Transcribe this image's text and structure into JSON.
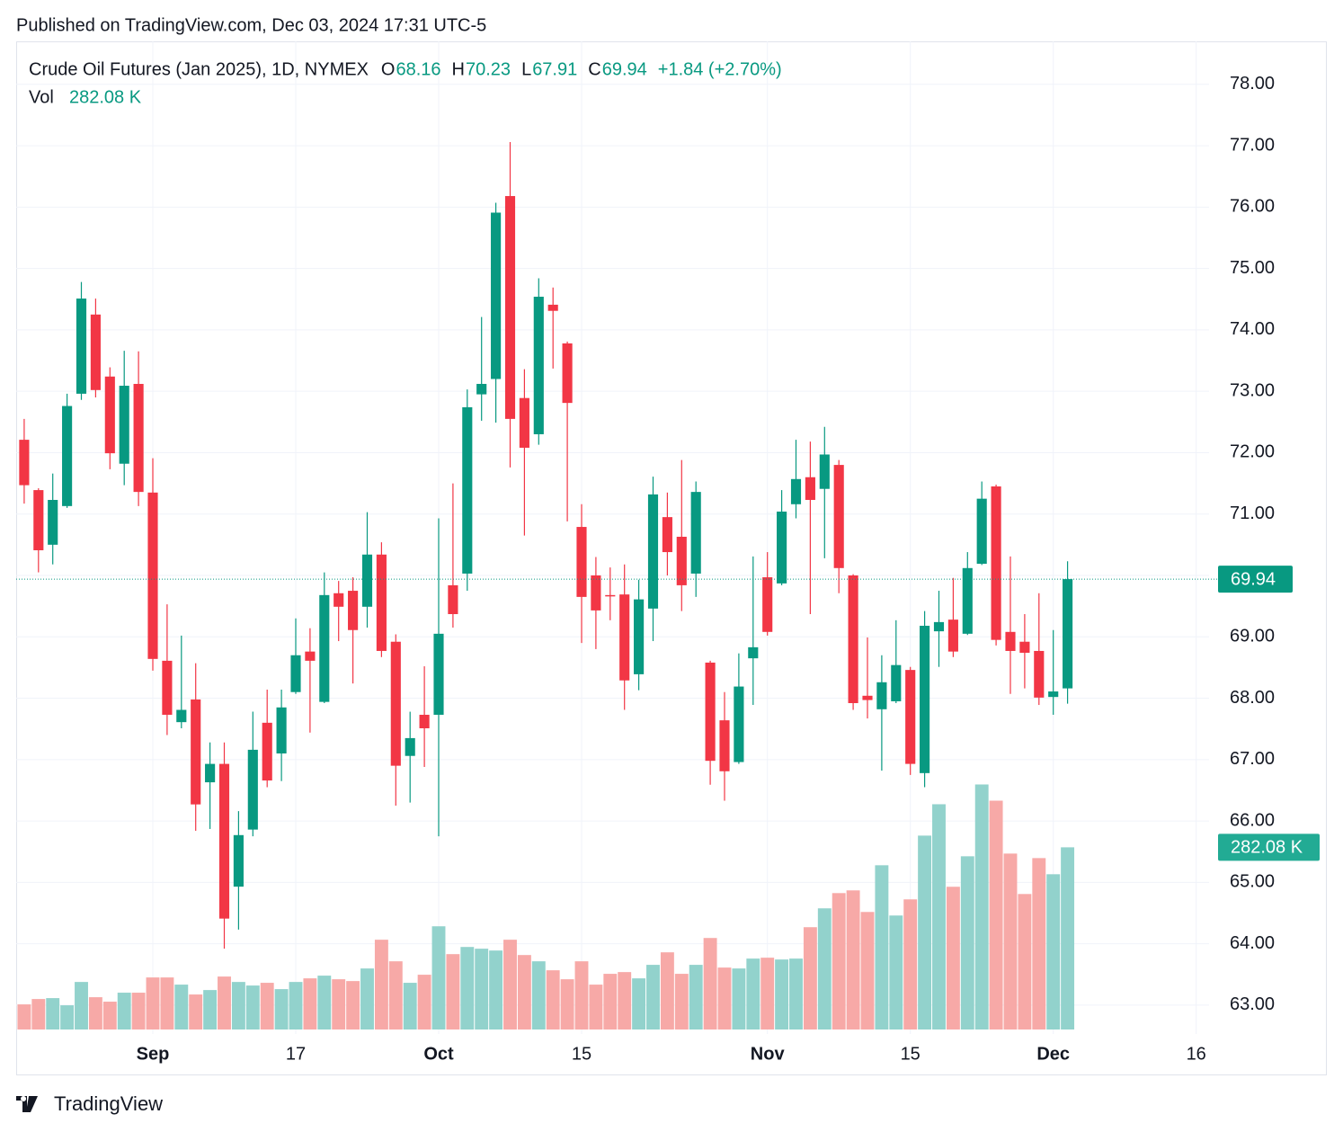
{
  "published": "Published on TradingView.com, Dec 03, 2024 17:31 UTC-5",
  "brand": "TradingView",
  "chart_data": {
    "type": "candlestick",
    "title": "Crude Oil Futures (Jan 2025), 1D, NYMEX",
    "ohlc_keys": [
      "O",
      "H",
      "L",
      "C"
    ],
    "change": "+1.84 (+2.70%)",
    "volume_title": "Vol",
    "volume_label": "282.08 K",
    "up_color": "#089981",
    "down_color": "#f23645",
    "up_volume_color": "#92d2cc",
    "down_volume_color": "#f7a9a7",
    "open": [
      72.21,
      71.39,
      70.5,
      71.13,
      72.96,
      74.25,
      73.24,
      71.82,
      73.12,
      71.35,
      68.61,
      67.61,
      67.98,
      66.63,
      66.93,
      64.93,
      65.86,
      67.6,
      67.1,
      68.1,
      68.76,
      67.94,
      69.71,
      69.75,
      69.49,
      70.34,
      68.92,
      67.06,
      67.73,
      67.73,
      69.84,
      70.03,
      72.95,
      73.2,
      76.18,
      72.89,
      72.3,
      74.41,
      73.78,
      70.79,
      70.0,
      69.68,
      69.69,
      68.39,
      69.46,
      70.95,
      70.63,
      70.03,
      68.58,
      67.64,
      66.96,
      68.65,
      69.97,
      69.87,
      71.16,
      71.6,
      71.41,
      71.8,
      70.0,
      68.04,
      67.82,
      67.95,
      68.46,
      66.78,
      69.09,
      69.28,
      69.05,
      70.19,
      71.45,
      69.08,
      68.92,
      68.77,
      68.02,
      68.16
    ],
    "high": [
      72.55,
      71.42,
      71.66,
      72.96,
      74.78,
      74.51,
      73.39,
      73.66,
      73.65,
      71.91,
      69.53,
      69.02,
      68.57,
      67.28,
      67.28,
      66.16,
      67.78,
      68.14,
      68.14,
      69.3,
      69.14,
      70.05,
      69.91,
      69.97,
      71.03,
      70.54,
      69.04,
      67.78,
      68.52,
      70.93,
      71.5,
      73.03,
      74.21,
      76.07,
      77.06,
      73.36,
      74.84,
      74.69,
      73.81,
      71.16,
      70.3,
      70.13,
      70.18,
      69.93,
      71.61,
      71.35,
      71.88,
      71.53,
      68.61,
      68.1,
      68.73,
      70.31,
      70.38,
      71.39,
      72.21,
      72.18,
      72.42,
      71.88,
      70.02,
      68.99,
      68.7,
      69.27,
      68.51,
      69.42,
      69.75,
      69.96,
      70.38,
      71.53,
      71.48,
      70.31,
      69.37,
      69.71,
      69.11,
      70.23
    ],
    "low": [
      71.17,
      70.05,
      70.18,
      71.1,
      72.86,
      72.9,
      71.73,
      71.47,
      71.13,
      68.45,
      67.4,
      67.51,
      65.84,
      65.87,
      63.92,
      64.23,
      65.75,
      66.55,
      66.65,
      68.07,
      67.44,
      67.92,
      68.93,
      68.24,
      69.15,
      68.67,
      66.25,
      66.3,
      66.88,
      65.75,
      69.15,
      69.75,
      72.52,
      72.49,
      71.76,
      70.65,
      72.13,
      73.37,
      70.88,
      68.9,
      68.8,
      69.27,
      67.81,
      68.13,
      68.93,
      70.0,
      69.42,
      69.65,
      66.59,
      66.33,
      66.93,
      67.89,
      69.02,
      69.84,
      70.93,
      69.37,
      70.28,
      69.71,
      67.81,
      67.67,
      66.82,
      67.92,
      66.75,
      66.55,
      68.51,
      68.67,
      69.03,
      70.17,
      68.86,
      68.07,
      68.16,
      67.89,
      67.73,
      67.91
    ],
    "close": [
      71.47,
      70.41,
      71.23,
      72.76,
      74.51,
      73.02,
      71.99,
      73.09,
      71.36,
      68.64,
      67.73,
      67.81,
      66.27,
      66.93,
      64.41,
      65.77,
      67.16,
      66.66,
      67.85,
      68.7,
      68.61,
      69.68,
      69.49,
      69.11,
      70.34,
      68.77,
      66.9,
      67.35,
      67.51,
      69.05,
      69.37,
      72.74,
      73.12,
      75.91,
      72.55,
      72.08,
      74.54,
      74.31,
      72.81,
      69.65,
      69.43,
      69.67,
      68.29,
      69.61,
      71.32,
      70.38,
      69.84,
      71.36,
      66.98,
      66.81,
      68.19,
      68.83,
      69.08,
      71.04,
      71.57,
      71.23,
      71.97,
      70.12,
      67.92,
      67.97,
      68.26,
      68.54,
      66.93,
      69.18,
      69.24,
      68.76,
      70.12,
      71.25,
      68.95,
      68.77,
      68.74,
      68.01,
      68.11,
      69.94
    ],
    "volume": [
      38.9,
      47.2,
      48.6,
      37.5,
      73.6,
      50.0,
      43.1,
      57.0,
      57.0,
      80.6,
      80.6,
      69.5,
      54.2,
      61.1,
      82.0,
      73.6,
      68.1,
      72.3,
      62.5,
      73.6,
      79.2,
      83.4,
      77.8,
      75.0,
      94.5,
      139.0,
      105.6,
      72.3,
      84.8,
      159.8,
      116.7,
      127.8,
      125.1,
      122.3,
      139.0,
      115.3,
      105.6,
      91.7,
      77.8,
      105.6,
      69.5,
      86.2,
      88.9,
      79.2,
      100.1,
      119.5,
      86.2,
      100.1,
      141.7,
      95.9,
      94.5,
      109.8,
      111.2,
      108.4,
      109.8,
      158.4,
      187.6,
      211.2,
      215.4,
      182.0,
      254.3,
      176.5,
      201.5,
      300.2,
      348.8,
      221.0,
      268.2,
      379.4,
      354.3,
      272.4,
      209.8,
      265.4,
      240.4,
      282.08
    ],
    "xlim": [
      -0.56,
      82.9
    ],
    "xticks": [
      {
        "value": 9,
        "label": "Sep"
      },
      {
        "value": 19,
        "label": "17"
      },
      {
        "value": 29,
        "label": "Oct"
      },
      {
        "value": 39,
        "label": "15"
      },
      {
        "value": 52,
        "label": "Nov"
      },
      {
        "value": 62,
        "label": "15"
      },
      {
        "value": 72,
        "label": "Dec"
      },
      {
        "value": 82,
        "label": "16"
      }
    ],
    "ylim": [
      62.53,
      78.7
    ],
    "yticks": [
      {
        "value": 63,
        "label": "63.00"
      },
      {
        "value": 64,
        "label": "64.00"
      },
      {
        "value": 65,
        "label": "65.00"
      },
      {
        "value": 66,
        "label": "66.00"
      },
      {
        "value": 67,
        "label": "67.00"
      },
      {
        "value": 68,
        "label": "68.00"
      },
      {
        "value": 69,
        "label": "69.00"
      },
      {
        "value": 70,
        "label": "70.00"
      },
      {
        "value": 71,
        "label": "71.00"
      },
      {
        "value": 72,
        "label": "72.00"
      },
      {
        "value": 73,
        "label": "73.00"
      },
      {
        "value": 74,
        "label": "74.00"
      },
      {
        "value": 75,
        "label": "75.00"
      },
      {
        "value": 76,
        "label": "76.00"
      },
      {
        "value": 77,
        "label": "77.00"
      },
      {
        "value": 78,
        "label": "78.00"
      }
    ],
    "vlim": [
      0,
      1530
    ],
    "grid": true
  }
}
